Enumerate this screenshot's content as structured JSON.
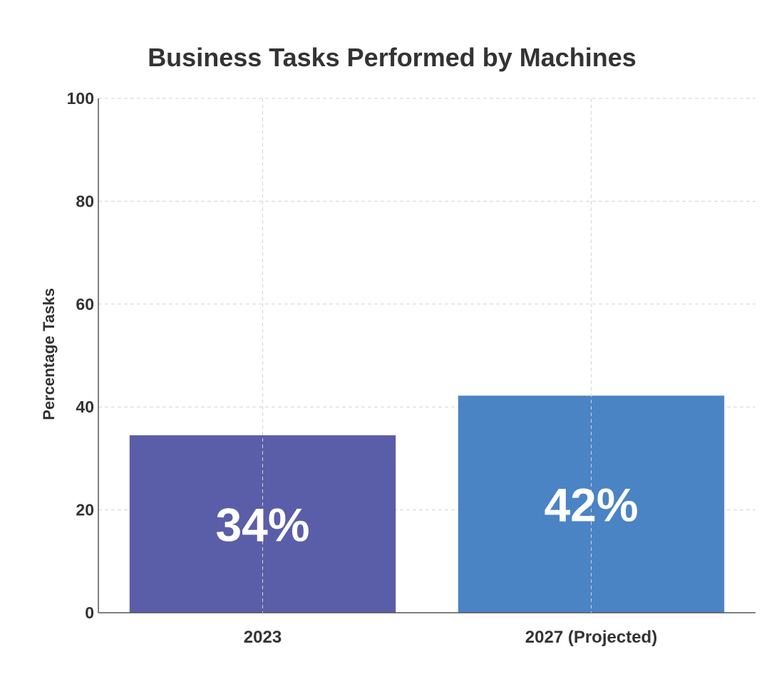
{
  "chart_data": {
    "type": "bar",
    "title": "Business Tasks Performed by Machines",
    "xlabel": "",
    "ylabel": "Percentage Tasks",
    "categories": [
      "2023",
      "2027 (Projected)"
    ],
    "values": [
      34.5,
      42.2
    ],
    "data_labels": [
      "34%",
      "42%"
    ],
    "colors": [
      "#5a5ea8",
      "#4a84c4"
    ],
    "ylim": [
      0,
      100
    ],
    "yticks": [
      0,
      20,
      40,
      60,
      80,
      100
    ],
    "grid": true
  }
}
